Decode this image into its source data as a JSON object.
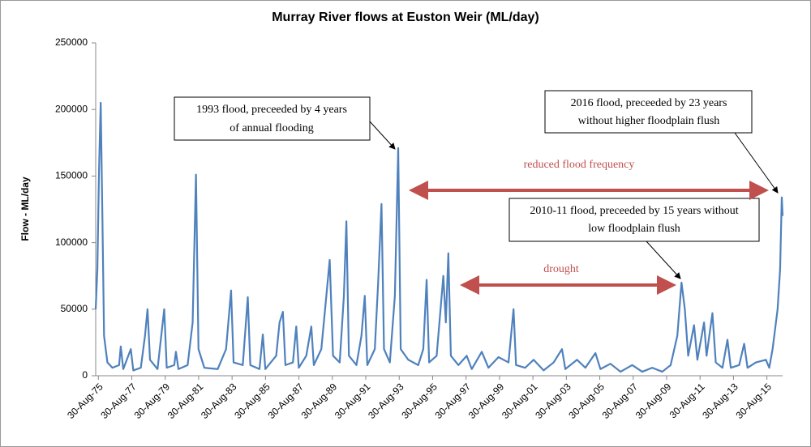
{
  "chart_data": {
    "type": "line",
    "title": "Murray River flows at Euston Weir (ML/day)",
    "ylabel": "Flow - ML/day",
    "color": "#4f81bd",
    "x": [
      1975.5,
      1975.6,
      1975.7,
      1975.8,
      1975.9,
      1976.0,
      1976.2,
      1976.5,
      1976.9,
      1977.0,
      1977.15,
      1977.6,
      1977.75,
      1978.2,
      1978.45,
      1978.6,
      1978.75,
      1979.2,
      1979.6,
      1979.75,
      1980.2,
      1980.3,
      1980.45,
      1981.0,
      1981.3,
      1981.5,
      1981.65,
      1982.0,
      1982.8,
      1983.3,
      1983.6,
      1983.75,
      1984.3,
      1984.6,
      1984.75,
      1985.3,
      1985.5,
      1985.65,
      1986.3,
      1986.5,
      1986.7,
      1986.85,
      1987.3,
      1987.5,
      1987.65,
      1988.1,
      1988.4,
      1988.55,
      1989.0,
      1989.3,
      1989.5,
      1989.7,
      1990.1,
      1990.35,
      1990.5,
      1990.65,
      1991.1,
      1991.4,
      1991.6,
      1991.75,
      1992.2,
      1992.4,
      1992.6,
      1992.75,
      1993.1,
      1993.4,
      1993.6,
      1993.75,
      1994.2,
      1994.8,
      1995.1,
      1995.3,
      1995.45,
      1995.9,
      1996.3,
      1996.45,
      1996.6,
      1996.75,
      1997.2,
      1997.7,
      1998.0,
      1998.6,
      1999.0,
      1999.6,
      2000.2,
      2000.5,
      2000.65,
      2001.2,
      2001.7,
      2002.3,
      2002.9,
      2003.4,
      2003.6,
      2004.3,
      2004.8,
      2005.4,
      2005.7,
      2006.3,
      2006.9,
      2007.6,
      2008.2,
      2008.8,
      2009.4,
      2009.9,
      2010.3,
      2010.55,
      2010.75,
      2010.95,
      2011.3,
      2011.5,
      2011.9,
      2012.05,
      2012.4,
      2012.6,
      2013.0,
      2013.3,
      2013.5,
      2014.0,
      2014.3,
      2014.5,
      2015.0,
      2015.6,
      2015.8,
      2016.0,
      2016.3,
      2016.45,
      2016.55,
      2016.6
    ],
    "values": [
      50000,
      80000,
      155000,
      205000,
      120000,
      30000,
      10000,
      6000,
      8000,
      22000,
      5000,
      20000,
      4000,
      6000,
      30000,
      50000,
      12000,
      5000,
      50000,
      6000,
      8000,
      18000,
      5000,
      8000,
      40000,
      151000,
      20000,
      6000,
      5000,
      20000,
      64000,
      10000,
      8000,
      59000,
      8000,
      5000,
      31000,
      5000,
      15000,
      40000,
      48000,
      8000,
      10000,
      37000,
      6000,
      15000,
      37000,
      8000,
      20000,
      60000,
      87000,
      15000,
      10000,
      60000,
      116000,
      15000,
      8000,
      30000,
      60000,
      8000,
      20000,
      70000,
      129000,
      20000,
      10000,
      60000,
      171000,
      20000,
      12000,
      8000,
      20000,
      72000,
      10000,
      15000,
      75000,
      40000,
      92000,
      15000,
      8000,
      15000,
      5000,
      18000,
      6000,
      14000,
      10000,
      50000,
      8000,
      6000,
      12000,
      4000,
      10000,
      20000,
      5000,
      12000,
      6000,
      17000,
      5000,
      9000,
      3000,
      8000,
      3000,
      6000,
      3000,
      8000,
      30000,
      70000,
      50000,
      15000,
      38000,
      12000,
      40000,
      15000,
      47000,
      10000,
      6000,
      27000,
      6000,
      8000,
      24000,
      6000,
      10000,
      12000,
      6000,
      20000,
      50000,
      80000,
      134000,
      120000
    ],
    "xlim": [
      1975.5,
      2016.6
    ],
    "xticks": [
      {
        "value": 1975.66,
        "label": "30-Aug-75"
      },
      {
        "value": 1977.66,
        "label": "30-Aug-77"
      },
      {
        "value": 1979.66,
        "label": "30-Aug-79"
      },
      {
        "value": 1981.66,
        "label": "30-Aug-81"
      },
      {
        "value": 1983.66,
        "label": "30-Aug-83"
      },
      {
        "value": 1985.66,
        "label": "30-Aug-85"
      },
      {
        "value": 1987.66,
        "label": "30-Aug-87"
      },
      {
        "value": 1989.66,
        "label": "30-Aug-89"
      },
      {
        "value": 1991.66,
        "label": "30-Aug-91"
      },
      {
        "value": 1993.66,
        "label": "30-Aug-93"
      },
      {
        "value": 1995.66,
        "label": "30-Aug-95"
      },
      {
        "value": 1997.66,
        "label": "30-Aug-97"
      },
      {
        "value": 1999.66,
        "label": "30-Aug-99"
      },
      {
        "value": 2001.66,
        "label": "30-Aug-01"
      },
      {
        "value": 2003.66,
        "label": "30-Aug-03"
      },
      {
        "value": 2005.66,
        "label": "30-Aug-05"
      },
      {
        "value": 2007.66,
        "label": "30-Aug-07"
      },
      {
        "value": 2009.66,
        "label": "30-Aug-09"
      },
      {
        "value": 2011.66,
        "label": "30-Aug-11"
      },
      {
        "value": 2013.66,
        "label": "30-Aug-13"
      },
      {
        "value": 2015.66,
        "label": "30-Aug-15"
      }
    ],
    "ylim": [
      0,
      250000
    ],
    "yticks": [
      0,
      50000,
      100000,
      150000,
      200000,
      250000
    ],
    "grid": false,
    "annotations": [
      {
        "lines": [
          "1993 flood, preceeded by 4 years",
          "of  annual flooding"
        ]
      },
      {
        "lines": [
          "2016 flood, preceeded by 23 years",
          "without higher floodplain flush"
        ]
      },
      {
        "lines": [
          "2010-11 flood, preceeded by 15 years without",
          "low floodplain flush"
        ]
      },
      {
        "lines": [
          "reduced flood frequency"
        ]
      },
      {
        "lines": [
          "drought"
        ]
      }
    ]
  }
}
